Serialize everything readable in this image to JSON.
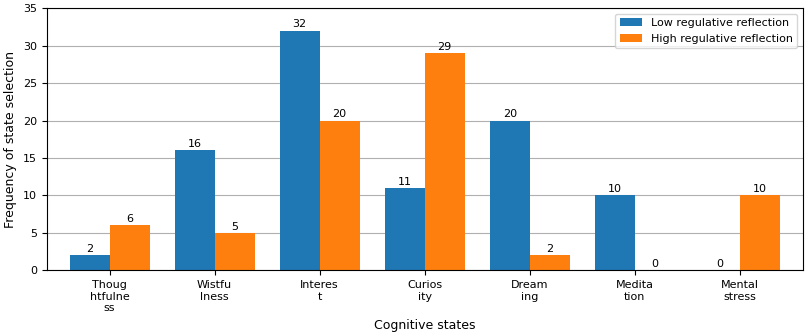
{
  "chart_data": {
    "type": "bar",
    "categories": [
      "Thoug\nhtfulne\nss",
      "Wistfu\nlness",
      "Interes\nt",
      "Curios\nity",
      "Dream\ning",
      "Medita\ntion",
      "Mental\nstress"
    ],
    "series": [
      {
        "name": "Low regulative reflection",
        "values": [
          2,
          16,
          32,
          11,
          20,
          10,
          0
        ]
      },
      {
        "name": "High regulative reflection",
        "values": [
          6,
          5,
          20,
          29,
          2,
          0,
          10
        ]
      }
    ],
    "xlabel": "Cognitive states",
    "ylabel": "Frequency of state selection",
    "ylim": [
      0,
      35
    ],
    "yticks": [
      0,
      5,
      10,
      15,
      20,
      25,
      30,
      35
    ],
    "grid": true,
    "legend": "upper right",
    "data_labels": true
  }
}
